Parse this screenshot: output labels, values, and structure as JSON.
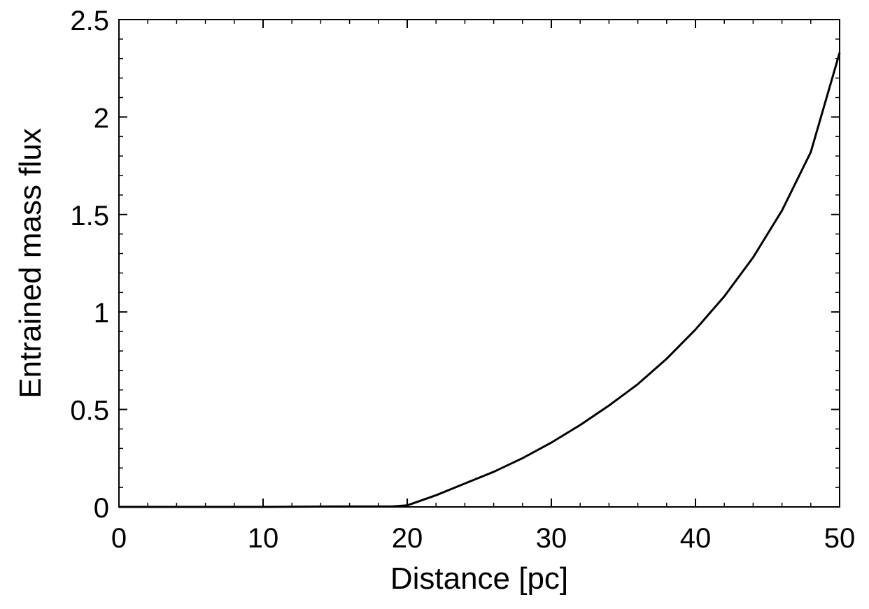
{
  "chart_data": {
    "type": "line",
    "title": "",
    "xlabel": "Distance [pc]",
    "ylabel": "Entrained mass flux",
    "xlim": [
      0,
      50
    ],
    "ylim": [
      0,
      2.5
    ],
    "x_ticks": [
      0,
      10,
      20,
      30,
      40,
      50
    ],
    "x_tick_labels": [
      "0",
      "10",
      "20",
      "30",
      "40",
      "50"
    ],
    "y_ticks": [
      0,
      0.5,
      1,
      1.5,
      2,
      2.5
    ],
    "y_tick_labels": [
      "0",
      "0.5",
      "1",
      "1.5",
      "2",
      "2.5"
    ],
    "x_minor_step": 2,
    "y_minor_step": 0.1,
    "grid": false,
    "series": [
      {
        "color": "#000000",
        "x": [
          0,
          5,
          10,
          15,
          19,
          20,
          22,
          24,
          26,
          28,
          30,
          32,
          34,
          36,
          38,
          40,
          42,
          44,
          46,
          48,
          50
        ],
        "y": [
          0,
          0,
          0,
          0.002,
          0.003,
          0.008,
          0.06,
          0.12,
          0.18,
          0.25,
          0.33,
          0.42,
          0.52,
          0.63,
          0.76,
          0.91,
          1.08,
          1.28,
          1.52,
          1.82,
          2.33
        ]
      }
    ]
  }
}
